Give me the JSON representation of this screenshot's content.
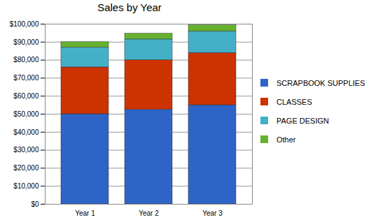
{
  "chart_data": {
    "type": "bar",
    "title": "Sales by Year",
    "stacked": true,
    "grid": true,
    "legend": "right",
    "categories": [
      "Year 1",
      "Year 2",
      "Year 3"
    ],
    "series": [
      {
        "name": "SCRAPBOOK SUPPLIES",
        "color": "#2e64c8",
        "values": [
          50000,
          52500,
          55000
        ]
      },
      {
        "name": "CLASSES",
        "color": "#cc3300",
        "values": [
          26000,
          27500,
          29000
        ]
      },
      {
        "name": "PAGE DESIGN",
        "color": "#44b0c8",
        "values": [
          11000,
          11500,
          12000
        ]
      },
      {
        "name": "Other",
        "color": "#66b22e",
        "values": [
          3000,
          3200,
          3400
        ]
      }
    ],
    "ylim": [
      0,
      100000
    ],
    "yticks": [
      {
        "value": 0,
        "label": "$0"
      },
      {
        "value": 10000,
        "label": "$10,000"
      },
      {
        "value": 20000,
        "label": "$20,000"
      },
      {
        "value": 30000,
        "label": "$30,000"
      },
      {
        "value": 40000,
        "label": "$40,000"
      },
      {
        "value": 50000,
        "label": "$50,000"
      },
      {
        "value": 60000,
        "label": "$60,000"
      },
      {
        "value": 70000,
        "label": "$70,000"
      },
      {
        "value": 80000,
        "label": "$80,000"
      },
      {
        "value": 90000,
        "label": "$90,000"
      },
      {
        "value": 100000,
        "label": "$100,000"
      }
    ]
  }
}
